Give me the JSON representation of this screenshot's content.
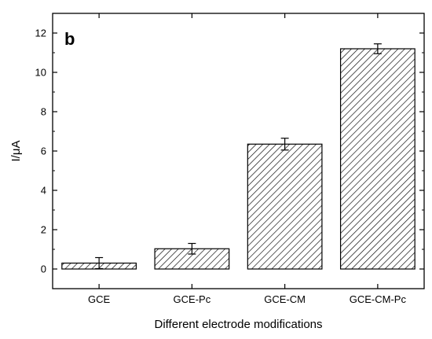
{
  "chart_data": {
    "type": "bar",
    "panel_label": "b",
    "categories": [
      "GCE",
      "GCE-Pc",
      "GCE-CM",
      "GCE-CM-Pc"
    ],
    "values": [
      0.3,
      1.03,
      6.35,
      11.2
    ],
    "errors": [
      0.28,
      0.27,
      0.3,
      0.25
    ],
    "xlabel": "Different electrode modifications",
    "ylabel": "I/μA",
    "ylim": [
      -1,
      13
    ],
    "yticks": [
      0,
      2,
      4,
      6,
      8,
      10,
      12
    ],
    "bar_fill": "diagonal-hatch",
    "bar_color": "#000000",
    "grid": false,
    "legend": "none"
  }
}
